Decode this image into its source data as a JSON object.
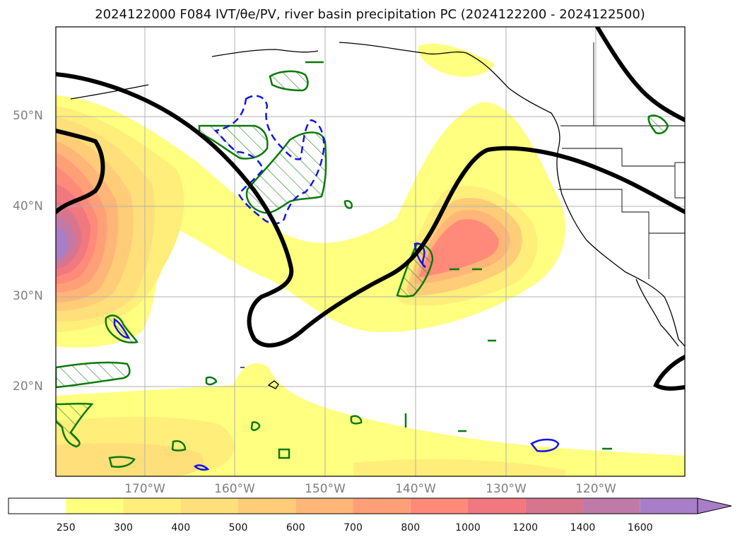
{
  "title": "2024122000 F084 IVT/θe/PV, river basin precipitation PC (2024122200 - 2024122500)",
  "map": {
    "lat_labels": [
      "50°N",
      "40°N",
      "30°N",
      "20°N"
    ],
    "lon_labels": [
      "170°W",
      "160°W",
      "150°W",
      "140°W",
      "130°W",
      "120°W"
    ]
  },
  "colorbar": {
    "ticks": [
      "250",
      "300",
      "400",
      "500",
      "600",
      "700",
      "800",
      "1000",
      "1200",
      "1400",
      "1600"
    ],
    "colors": [
      "#ffffff",
      "#ffff80",
      "#ffee7a",
      "#ffdf7a",
      "#ffcc78",
      "#ffb677",
      "#ff9f78",
      "#ff8a7a",
      "#f2787f",
      "#d8758e",
      "#c07aaa",
      "#a87ec8"
    ]
  }
}
